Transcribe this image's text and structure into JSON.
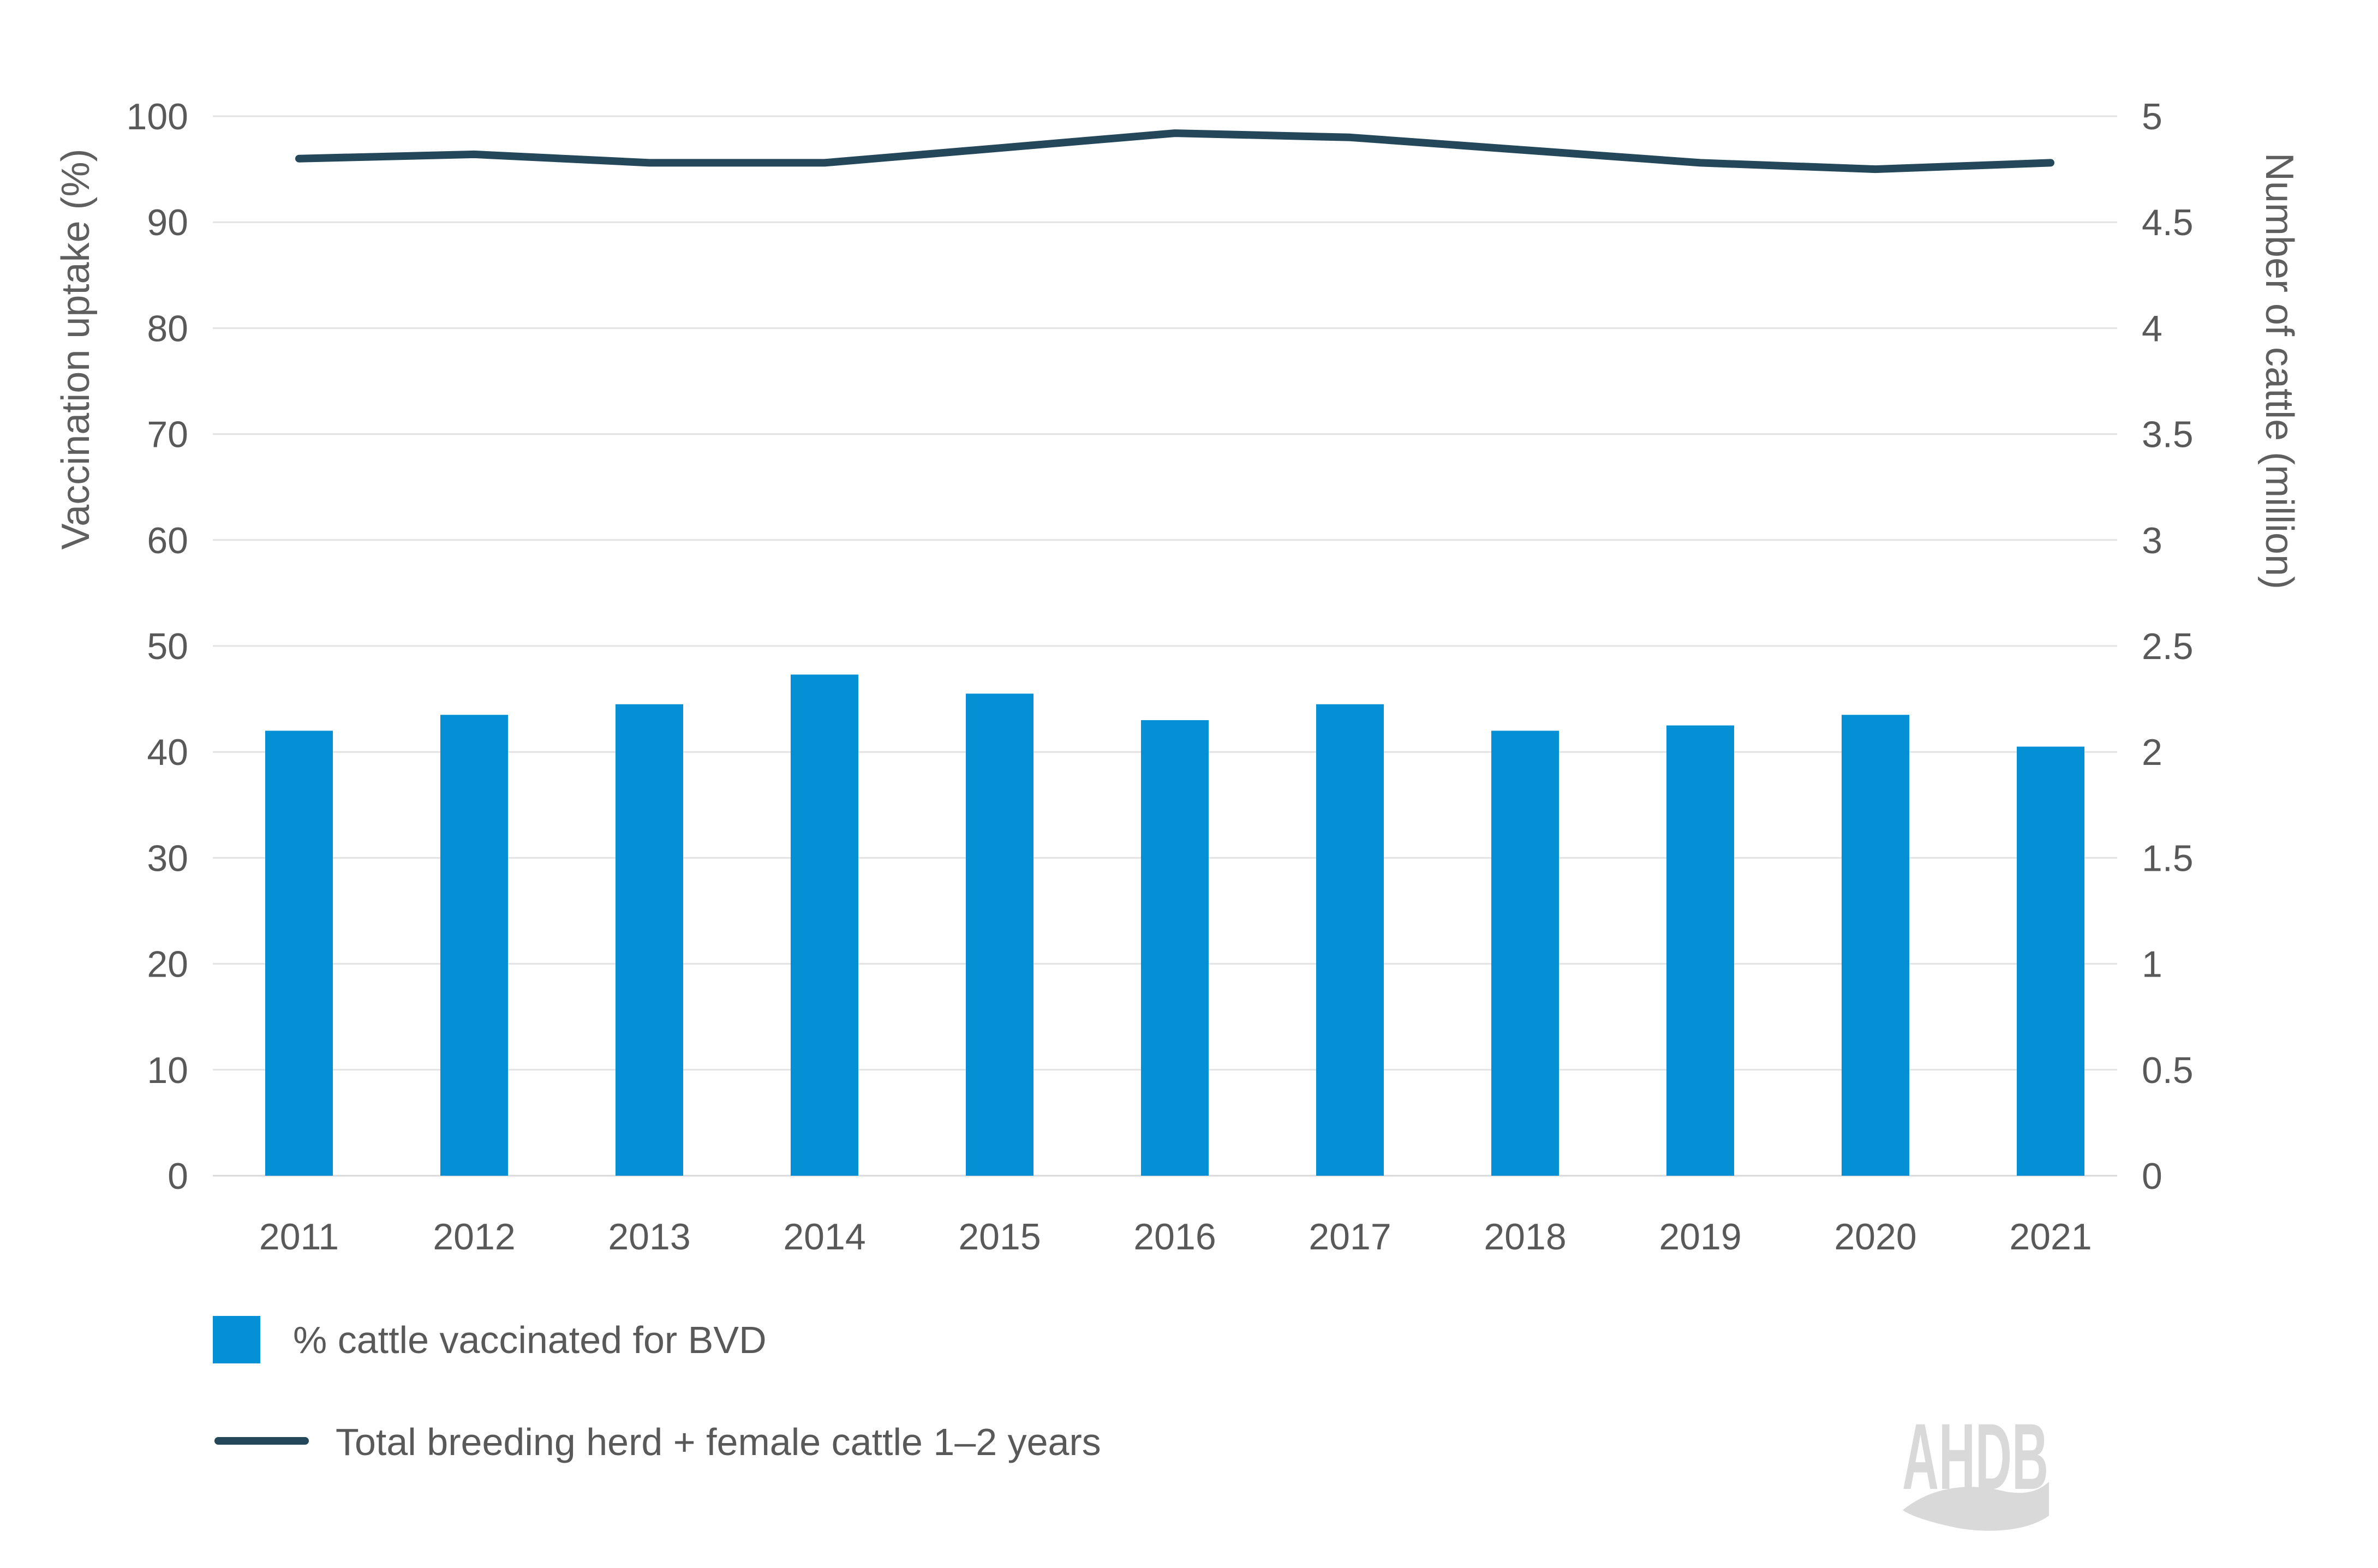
{
  "chart_data": {
    "type": "bar",
    "subtype": "bar-line-combo",
    "categories": [
      "2011",
      "2012",
      "2013",
      "2014",
      "2015",
      "2016",
      "2017",
      "2018",
      "2019",
      "2020",
      "2021"
    ],
    "series": [
      {
        "name": "% cattle vaccinated for BVD",
        "type": "bar",
        "axis": "left",
        "color": "#0590d5",
        "values": [
          42,
          43.5,
          44.5,
          47.3,
          45.5,
          43,
          44.5,
          42,
          42.5,
          43.5,
          40.5
        ]
      },
      {
        "name": "Total breeding herd + female cattle 1–2 years",
        "type": "line",
        "axis": "right",
        "color": "#24485a",
        "values": [
          4.8,
          4.82,
          4.78,
          4.78,
          4.85,
          4.92,
          4.9,
          4.84,
          4.78,
          4.75,
          4.78
        ]
      }
    ],
    "left_axis": {
      "label": "Vaccination uptake (%)",
      "min": 0,
      "max": 100,
      "tick_step": 10
    },
    "right_axis": {
      "label": "Number of cattle (million)",
      "min": 0,
      "max": 5,
      "tick_step": 0.5
    },
    "grid": true,
    "legend_position": "bottom-left"
  },
  "legend": {
    "items": [
      {
        "label": "% cattle vaccinated for BVD",
        "swatch": "square",
        "color": "#0590d5"
      },
      {
        "label": "Total breeding herd + female cattle 1–2 years",
        "swatch": "line",
        "color": "#24485a"
      }
    ]
  },
  "logo": {
    "text": "AHDB",
    "color": "#d9d9d9"
  },
  "colors": {
    "bar": "#0590d5",
    "line": "#24485a",
    "grid": "#e3e3e3",
    "baseline": "#d9d9d9",
    "axis_text": "#595959",
    "background": "#ffffff"
  }
}
